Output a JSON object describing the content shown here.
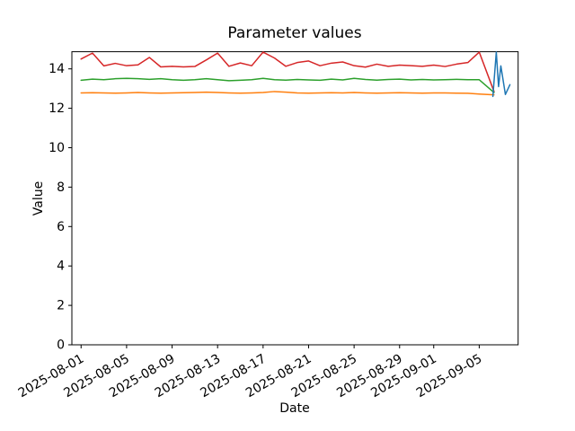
{
  "figure": {
    "background": "#ffffff",
    "title": "Parameter values",
    "xlabel": "Date",
    "ylabel": "Value"
  },
  "chart_data": {
    "type": "line",
    "title": "Parameter values",
    "xlabel": "Date",
    "ylabel": "Value",
    "grid": false,
    "legend": "none",
    "x_axis": {
      "unit": "days since 2025-08-01",
      "lim": [
        -0.81,
        38.42
      ],
      "ticks": [
        {
          "day": 0,
          "label": "2025-08-01"
        },
        {
          "day": 4,
          "label": "2025-08-05"
        },
        {
          "day": 8,
          "label": "2025-08-09"
        },
        {
          "day": 12,
          "label": "2025-08-13"
        },
        {
          "day": 16,
          "label": "2025-08-17"
        },
        {
          "day": 20,
          "label": "2025-08-21"
        },
        {
          "day": 24,
          "label": "2025-08-25"
        },
        {
          "day": 28,
          "label": "2025-08-29"
        },
        {
          "day": 31,
          "label": "2025-09-01"
        },
        {
          "day": 35,
          "label": "2025-09-05"
        }
      ],
      "tick_label_rotation_deg": 30
    },
    "y_axis": {
      "lim": [
        0,
        14.87
      ],
      "ticks": [
        0,
        2,
        4,
        6,
        8,
        10,
        12,
        14
      ]
    },
    "series": [
      {
        "name": "red",
        "color": "#d62728",
        "x_days": [
          0,
          1,
          2,
          3,
          4,
          5,
          6,
          7,
          8,
          9,
          10,
          11,
          12,
          13,
          14,
          15,
          16,
          17,
          18,
          19,
          20,
          21,
          22,
          23,
          24,
          25,
          26,
          27,
          28,
          29,
          30,
          31,
          32,
          33,
          34,
          35,
          36.3
        ],
        "values": [
          14.5,
          14.8,
          14.15,
          14.28,
          14.16,
          14.2,
          14.58,
          14.1,
          14.13,
          14.1,
          14.12,
          14.45,
          14.8,
          14.13,
          14.3,
          14.16,
          14.85,
          14.55,
          14.13,
          14.32,
          14.4,
          14.16,
          14.29,
          14.35,
          14.16,
          14.09,
          14.24,
          14.13,
          14.19,
          14.16,
          14.13,
          14.19,
          14.12,
          14.24,
          14.32,
          14.85,
          12.85
        ]
      },
      {
        "name": "green",
        "color": "#2ca02c",
        "x_days": [
          0,
          1,
          2,
          3,
          4,
          5,
          6,
          7,
          8,
          9,
          10,
          11,
          12,
          13,
          14,
          15,
          16,
          17,
          18,
          19,
          20,
          21,
          22,
          23,
          24,
          25,
          26,
          27,
          28,
          29,
          30,
          31,
          32,
          33,
          34,
          35,
          36.3
        ],
        "values": [
          13.42,
          13.48,
          13.45,
          13.5,
          13.52,
          13.5,
          13.47,
          13.5,
          13.45,
          13.42,
          13.45,
          13.5,
          13.45,
          13.4,
          13.42,
          13.45,
          13.52,
          13.45,
          13.43,
          13.46,
          13.44,
          13.42,
          13.48,
          13.44,
          13.52,
          13.46,
          13.43,
          13.46,
          13.48,
          13.44,
          13.46,
          13.44,
          13.45,
          13.47,
          13.45,
          13.45,
          12.8
        ]
      },
      {
        "name": "orange",
        "color": "#ff7f0e",
        "x_days": [
          0,
          1,
          2,
          3,
          4,
          5,
          6,
          7,
          8,
          9,
          10,
          11,
          12,
          13,
          14,
          15,
          16,
          17,
          18,
          19,
          20,
          21,
          22,
          23,
          24,
          25,
          26,
          27,
          28,
          29,
          30,
          31,
          32,
          33,
          34,
          35,
          36.3
        ],
        "values": [
          12.78,
          12.79,
          12.78,
          12.77,
          12.78,
          12.8,
          12.78,
          12.77,
          12.78,
          12.79,
          12.8,
          12.82,
          12.8,
          12.78,
          12.77,
          12.78,
          12.8,
          12.85,
          12.82,
          12.78,
          12.77,
          12.78,
          12.79,
          12.78,
          12.8,
          12.78,
          12.77,
          12.78,
          12.79,
          12.78,
          12.77,
          12.78,
          12.78,
          12.77,
          12.76,
          12.72,
          12.68
        ]
      },
      {
        "name": "blue",
        "color": "#1f77b4",
        "x_days": [
          36.2,
          36.5,
          36.7,
          36.9,
          37.3,
          37.7
        ],
        "values": [
          12.6,
          14.85,
          13.1,
          14.15,
          12.7,
          13.2
        ]
      }
    ]
  }
}
